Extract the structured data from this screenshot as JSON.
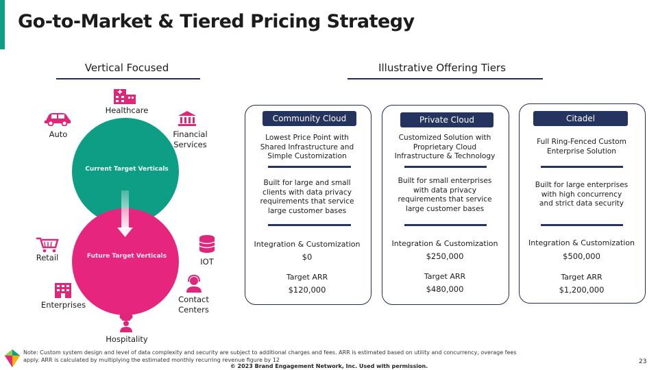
{
  "title": "Go-to-Market & Tiered Pricing Strategy",
  "left_section": {
    "heading": "Vertical Focused",
    "current_label": "Current Target Verticals",
    "future_label": "Future Target Verticals",
    "verticals": {
      "healthcare": "Healthcare",
      "auto": "Auto",
      "financial_1": "Financial",
      "financial_2": "Services",
      "retail": "Retail",
      "iot": "IOT",
      "contact_1": "Contact",
      "contact_2": "Centers",
      "enterprises": "Enterprises",
      "hospitality": "Hospitality"
    },
    "colors": {
      "current": "#0e9e86",
      "future": "#e6267e",
      "icon": "#e0267a"
    }
  },
  "right_section": {
    "heading": "Illustrative Offering Tiers",
    "tiers": [
      {
        "name": "Community Cloud",
        "desc1": [
          "Lowest Price Point with",
          "Shared Infrastructure and",
          "Simple Customization"
        ],
        "desc2": [
          "Built for large and small",
          "clients with data privacy",
          "requirements that service",
          "large customer bases"
        ],
        "integration_label": "Integration & Customization",
        "integration_price": "$0",
        "arr_label": "Target ARR",
        "arr_value": "$120,000"
      },
      {
        "name": "Private Cloud",
        "desc1": [
          "Customized Solution with",
          "Proprietary Cloud",
          "Infrastructure & Technology"
        ],
        "desc2": [
          "Built for small enterprises",
          "with data privacy",
          "requirements that service",
          "large customer bases"
        ],
        "integration_label": "Integration & Customization",
        "integration_price": "$250,000",
        "arr_label": "Target ARR",
        "arr_value": "$480,000"
      },
      {
        "name": "Citadel",
        "desc1": [
          "Full Ring-Fenced Custom",
          "Enterprise Solution"
        ],
        "desc2": [
          "Built for large enterprises",
          "with high concurrency",
          "and strict data security"
        ],
        "integration_label": "Integration & Customization",
        "integration_price": "$500,000",
        "arr_label": "Target ARR",
        "arr_value": "$1,200,000"
      }
    ]
  },
  "footnote": "Note: Custom system design and level of data complexity and security are subject to additional charges and fees. ARR is estimated based on utility and concurrency, overage fees apply. ARR is calculated by multiplying the estimated monthly recurring revenue figure by 12",
  "page_number": "23",
  "copyright": "© 2023 Brand Engagement Network, Inc. Used with permission.",
  "theme": {
    "navy": "#25345e",
    "teal": "#0e9e86",
    "pink": "#e6267e"
  }
}
